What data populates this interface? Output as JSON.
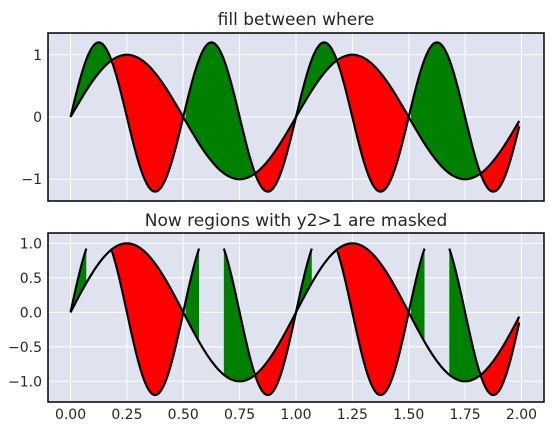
{
  "chart_data": [
    {
      "type": "area",
      "title": "fill between where",
      "xlabel": "",
      "ylabel": "",
      "xlim": [
        -0.1,
        2.1
      ],
      "ylim": [
        -1.35,
        1.35
      ],
      "x_ticks": [
        0.0,
        0.25,
        0.5,
        0.75,
        1.0,
        1.25,
        1.5,
        1.75,
        2.0
      ],
      "x_tick_labels": [],
      "y_ticks": [
        -1,
        0,
        1
      ],
      "y_tick_labels": [
        "−1",
        "0",
        "1"
      ],
      "x_range": [
        0.0,
        1.99,
        0.01
      ],
      "series": [
        {
          "formula": "sin(2*pi*x)",
          "color": "#000000"
        },
        {
          "formula": "1.2*sin(4*pi*x)",
          "color": "#000000"
        }
      ],
      "fills": [
        {
          "where": "y2 >= y1",
          "color": "#008000"
        },
        {
          "where": "y2 <= y1",
          "color": "#ff0000"
        }
      ],
      "mask": null,
      "grid": true
    },
    {
      "type": "area",
      "title": "Now regions with y2>1 are masked",
      "xlabel": "",
      "ylabel": "",
      "xlim": [
        -0.1,
        2.1
      ],
      "ylim": [
        -1.3,
        1.15
      ],
      "x_ticks": [
        0.0,
        0.25,
        0.5,
        0.75,
        1.0,
        1.25,
        1.5,
        1.75,
        2.0
      ],
      "x_tick_labels": [
        "0.00",
        "0.25",
        "0.50",
        "0.75",
        "1.00",
        "1.25",
        "1.50",
        "1.75",
        "2.00"
      ],
      "y_ticks": [
        -1.0,
        -0.5,
        0.0,
        0.5,
        1.0
      ],
      "y_tick_labels": [
        "−1.0",
        "−0.5",
        "0.0",
        "0.5",
        "1.0"
      ],
      "x_range": [
        0.0,
        1.99,
        0.01
      ],
      "series": [
        {
          "formula": "sin(2*pi*x)",
          "color": "#000000"
        },
        {
          "formula": "1.2*sin(4*pi*x)",
          "color": "#000000",
          "masked_where": "y2 > 1"
        }
      ],
      "fills": [
        {
          "where": "y2 >= y1",
          "color": "#008000"
        },
        {
          "where": "y2 <= y1",
          "color": "#ff0000"
        }
      ],
      "grid": true
    }
  ],
  "style": {
    "axes_background": "#dee3ef",
    "grid_color": "#ffffff",
    "frame_color": "#000000",
    "text_color": "#262626"
  }
}
